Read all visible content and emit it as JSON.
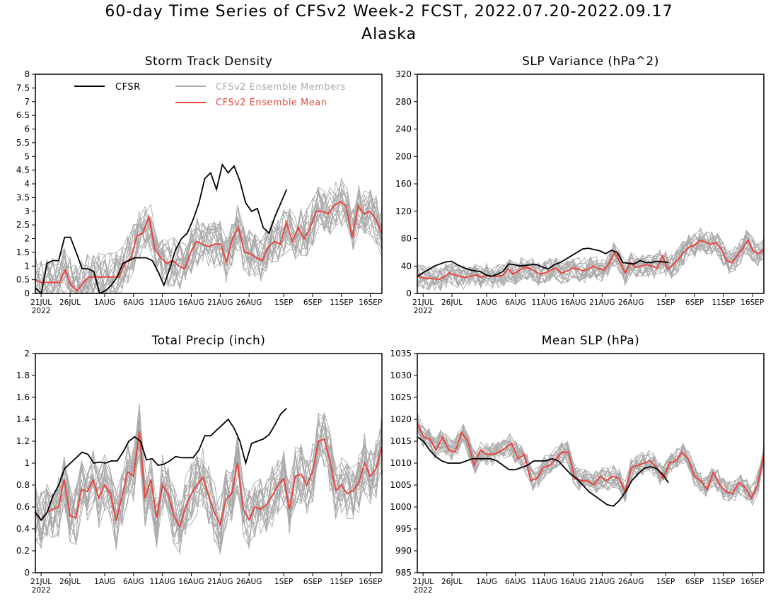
{
  "header": {
    "title": "60-day Time Series of CFSv2 Week-2 FCST, 2022.07.20-2022.09.17",
    "region": "Alaska"
  },
  "colors": {
    "cfsr": "#000000",
    "members": "#aaaaaa",
    "mean": "#e8473f"
  },
  "legend": {
    "cfsr": "CFSR",
    "members": "CFSv2 Ensemble Members",
    "mean": "CFSv2 Ensemble Mean"
  },
  "x_axis": {
    "tick_labels": [
      "21JUL",
      "26JUL",
      "1AUG",
      "6AUG",
      "11AUG",
      "16AUG",
      "21AUG",
      "26AUG",
      "1SEP",
      "6SEP",
      "11SEP",
      "16SEP"
    ],
    "year_label": "2022"
  },
  "chart_data": [
    {
      "type": "line",
      "title": "Storm Track Density",
      "ylim": [
        0,
        8
      ],
      "yticks": [
        "0",
        "0.5",
        "1",
        "1.5",
        "2",
        "2.5",
        "3",
        "3.5",
        "4",
        "4.5",
        "5",
        "5.5",
        "6",
        "6.5",
        "7",
        "7.5",
        "8"
      ],
      "legend_position": "top-left",
      "series": [
        {
          "name": "CFSR",
          "values": [
            0.2,
            0,
            1.1,
            1.2,
            1.2,
            2.05,
            2.05,
            1.5,
            0.9,
            0.9,
            0.8,
            0,
            0.1,
            0.3,
            0.6,
            1.1,
            1.2,
            1.3,
            1.3,
            1.3,
            1.2,
            0.8,
            0.3,
            0.9,
            1.6,
            2.0,
            2.2,
            2.7,
            3.3,
            4.2,
            4.4,
            3.8,
            4.7,
            4.4,
            4.65,
            4.1,
            3.3,
            3.0,
            3.1,
            2.4,
            2.2,
            2.8,
            3.3,
            3.8
          ]
        },
        {
          "name": "CFSv2 Ensemble Mean",
          "values": [
            0.5,
            0.4,
            0.4,
            0.4,
            0.4,
            0.85,
            0.3,
            0.1,
            0.4,
            0.6,
            0.6,
            0.6,
            0.6,
            0.6,
            0.6,
            1.1,
            1.3,
            2.1,
            2.2,
            2.8,
            1.6,
            1.3,
            1.1,
            1.2,
            1.0,
            0.9,
            1.5,
            1.9,
            1.8,
            1.7,
            1.8,
            1.8,
            1.15,
            2.0,
            2.4,
            1.5,
            1.45,
            1.3,
            1.2,
            1.7,
            1.9,
            1.8,
            2.6,
            1.9,
            2.4,
            2.0,
            2.4,
            3.0,
            3.0,
            2.9,
            3.2,
            3.35,
            3.2,
            2.05,
            3.2,
            2.9,
            3.0,
            2.7,
            2.2
          ]
        },
        {
          "name": "CFSv2 Ensemble Members",
          "spread": 0.9,
          "seed": 11
        }
      ]
    },
    {
      "type": "line",
      "title": "SLP Variance (hPa^2)",
      "ylim": [
        0,
        320
      ],
      "yticks": [
        "0",
        "40",
        "80",
        "120",
        "160",
        "200",
        "240",
        "280",
        "320"
      ],
      "series": [
        {
          "name": "CFSR",
          "values": [
            25,
            30,
            35,
            40,
            43,
            46,
            47,
            42,
            38,
            35,
            33,
            32,
            27,
            25,
            28,
            32,
            43,
            42,
            40,
            41,
            42,
            42,
            38,
            36,
            42,
            45,
            50,
            55,
            60,
            65,
            66,
            64,
            62,
            58,
            63,
            60,
            45,
            44,
            43,
            48,
            45,
            45,
            47,
            46,
            45
          ]
        },
        {
          "name": "CFSv2 Ensemble Mean",
          "values": [
            25,
            23,
            22,
            22,
            20,
            24,
            30,
            27,
            25,
            23,
            25,
            27,
            24,
            26,
            25,
            25,
            26,
            36,
            28,
            33,
            38,
            37,
            33,
            28,
            30,
            34,
            37,
            30,
            32,
            37,
            36,
            33,
            35,
            40,
            36,
            34,
            44,
            60,
            46,
            30,
            45,
            38,
            40,
            42,
            40,
            37,
            55,
            35,
            42,
            50,
            60,
            68,
            70,
            78,
            75,
            72,
            74,
            65,
            48,
            45,
            55,
            65,
            78,
            62,
            58,
            65
          ]
        },
        {
          "name": "CFSv2 Ensemble Members",
          "spread": 18,
          "seed": 23
        }
      ]
    },
    {
      "type": "line",
      "title": "Total Precip (inch)",
      "ylim": [
        0,
        2
      ],
      "yticks": [
        "0",
        "0.2",
        "0.4",
        "0.6",
        "0.8",
        "1",
        "1.2",
        "1.4",
        "1.6",
        "1.8",
        "2"
      ],
      "series": [
        {
          "name": "CFSR",
          "values": [
            0.55,
            0.48,
            0.55,
            0.7,
            0.8,
            0.95,
            1.0,
            1.05,
            1.1,
            1.08,
            1.0,
            1.01,
            1.0,
            1.02,
            1.02,
            1.1,
            1.2,
            1.24,
            1.2,
            1.03,
            1.04,
            0.98,
            0.99,
            1.02,
            1.06,
            1.05,
            1.05,
            1.05,
            1.12,
            1.25,
            1.25,
            1.3,
            1.35,
            1.4,
            1.32,
            1.2,
            1.0,
            1.18,
            1.2,
            1.22,
            1.26,
            1.35,
            1.45,
            1.5
          ]
        },
        {
          "name": "CFSv2 Ensemble Mean",
          "values": [
            0.55,
            0.48,
            0.55,
            0.58,
            0.6,
            0.85,
            0.52,
            0.5,
            0.76,
            0.74,
            0.85,
            0.68,
            0.8,
            0.72,
            0.47,
            0.7,
            0.92,
            0.88,
            1.29,
            0.68,
            0.85,
            0.5,
            0.8,
            0.72,
            0.52,
            0.42,
            0.6,
            0.72,
            0.8,
            0.87,
            0.7,
            0.55,
            0.44,
            0.67,
            0.72,
            1.0,
            0.58,
            0.48,
            0.6,
            0.58,
            0.62,
            0.7,
            0.8,
            0.86,
            0.58,
            0.88,
            0.9,
            0.8,
            0.92,
            1.2,
            1.22,
            1.02,
            0.75,
            0.8,
            0.72,
            0.75,
            0.82,
            1.0,
            0.88,
            0.95,
            1.15
          ]
        },
        {
          "name": "CFSv2 Ensemble Members",
          "spread": 0.28,
          "seed": 37
        }
      ]
    },
    {
      "type": "line",
      "title": "Mean SLP (hPa)",
      "ylim": [
        985,
        1035
      ],
      "yticks": [
        "985",
        "990",
        "995",
        "1000",
        "1005",
        "1010",
        "1015",
        "1020",
        "1025",
        "1030",
        "1035"
      ],
      "series": [
        {
          "name": "CFSR",
          "values": [
            1016,
            1015,
            1013,
            1011.5,
            1010.5,
            1010,
            1010,
            1010,
            1010.5,
            1011,
            1011,
            1011,
            1011,
            1010.5,
            1009.5,
            1008.5,
            1008.5,
            1009,
            1009.5,
            1010.5,
            1010.5,
            1010.5,
            1011,
            1010.5,
            1009,
            1007.5,
            1006.5,
            1005,
            1003.5,
            1002.5,
            1001.5,
            1000.5,
            1000.2,
            1001.5,
            1003.5,
            1006,
            1007.5,
            1008.8,
            1009.2,
            1008.8,
            1007.5,
            1005.5
          ]
        },
        {
          "name": "CFSv2 Ensemble Mean",
          "values": [
            1019,
            1016,
            1015.5,
            1013,
            1016,
            1013,
            1012.5,
            1017,
            1015,
            1009.5,
            1013,
            1012,
            1012,
            1012.5,
            1013.5,
            1014.5,
            1011,
            1012,
            1006,
            1006.5,
            1009,
            1009.5,
            1011,
            1012.5,
            1012.5,
            1006.5,
            1006,
            1006,
            1005,
            1007,
            1006,
            1007,
            1006.5,
            1003.5,
            1009,
            1009.5,
            1010,
            1010.5,
            1009,
            1006.5,
            1010,
            1010.5,
            1012.5,
            1011,
            1007,
            1006,
            1004,
            1008,
            1005,
            1003.5,
            1003,
            1005.5,
            1004.5,
            1002,
            1005,
            1012
          ]
        },
        {
          "name": "CFSv2 Ensemble Members",
          "spread": 2.6,
          "seed": 51
        }
      ]
    }
  ]
}
